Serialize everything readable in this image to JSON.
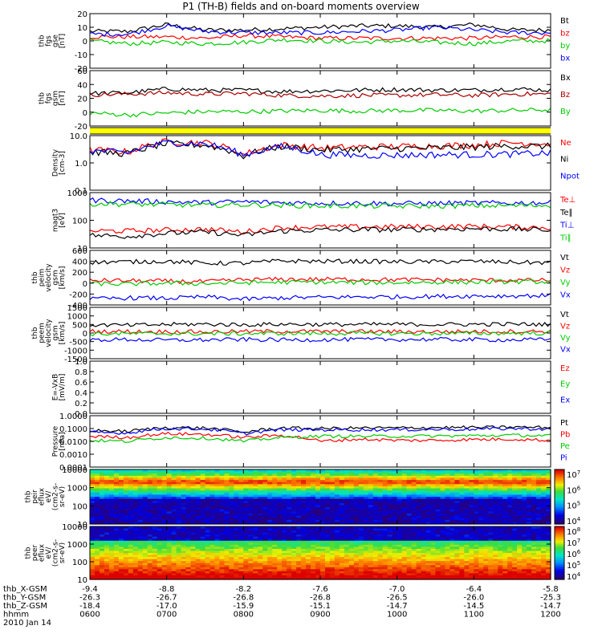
{
  "title": "P1 (TH-B) fields and on-board moments overview",
  "chart_data": [
    {
      "type": "line",
      "panel": "fgs_gse",
      "ylabel": [
        "thb",
        "fgs",
        "gse",
        "[nT]"
      ],
      "yticks": [
        "20",
        "10",
        "0",
        "-10",
        "-20"
      ],
      "ylim": [
        -20,
        20
      ],
      "series": [
        {
          "name": "Bt",
          "color": "#000000",
          "values": [
            7,
            7,
            12,
            8,
            8,
            9,
            10,
            11,
            11,
            10,
            12,
            8,
            8
          ]
        },
        {
          "name": "bz",
          "color": "#ff0000",
          "values": [
            3,
            3,
            3,
            2,
            4,
            3,
            2,
            2,
            2,
            2,
            2,
            3,
            3
          ]
        },
        {
          "name": "by",
          "color": "#00cc00",
          "values": [
            0,
            -2,
            -1,
            -2,
            -1,
            1,
            0,
            -1,
            0,
            -1,
            -2,
            0,
            0
          ]
        },
        {
          "name": "bx",
          "color": "#0000ff",
          "values": [
            5,
            5,
            11,
            7,
            6,
            6,
            6,
            7,
            8,
            10,
            8,
            6,
            6
          ]
        }
      ]
    },
    {
      "type": "line",
      "panel": "fgs_gsm",
      "ylabel": [
        "thb",
        "fgs",
        "gsm",
        "[nT]"
      ],
      "yticks": [
        "60",
        "40",
        "20",
        "0",
        "-20"
      ],
      "ylim": [
        -25,
        60
      ],
      "series": [
        {
          "name": "Bx",
          "color": "#000000",
          "values": [
            25,
            26,
            32,
            30,
            30,
            28,
            29,
            30,
            31,
            30,
            30,
            32,
            30
          ]
        },
        {
          "name": "Bz",
          "color": "#aa0000",
          "values": [
            23,
            24,
            26,
            24,
            25,
            22,
            21,
            22,
            22,
            23,
            22,
            24,
            24
          ]
        },
        {
          "name": "By",
          "color": "#00cc00",
          "values": [
            -5,
            -8,
            -5,
            -3,
            -3,
            -2,
            -1,
            -2,
            -1,
            -1,
            -2,
            -1,
            0
          ]
        }
      ]
    },
    {
      "type": "line",
      "panel": "density",
      "scale": "log",
      "ylabel": [
        "Density",
        "[cm-3]"
      ],
      "yticks": [
        "10.0",
        "1.0",
        "0.1"
      ],
      "ylim": [
        0.1,
        10
      ],
      "series": [
        {
          "name": "Ne",
          "color": "#ff0000",
          "values": [
            3,
            2.5,
            6,
            5.5,
            2,
            4.5,
            3.5,
            3.8,
            4,
            4.2,
            4.5,
            5.5,
            5
          ]
        },
        {
          "name": "Ni",
          "color": "#000000",
          "values": [
            2.5,
            2.2,
            5,
            4.5,
            1.8,
            4,
            3,
            3.2,
            3.4,
            3.5,
            3.8,
            4.2,
            4
          ]
        },
        {
          "name": "Npot",
          "color": "#0000ff",
          "values": [
            2.8,
            2.3,
            5.5,
            5,
            1.9,
            4,
            2,
            1.9,
            1.9,
            2,
            2,
            2.1,
            2.3
          ]
        }
      ]
    },
    {
      "type": "line",
      "panel": "temperature",
      "scale": "log",
      "ylabel": [
        "magt3",
        "[eV]"
      ],
      "yticks": [
        "1000",
        "100",
        "10"
      ],
      "ylim": [
        7,
        3000
      ],
      "series": [
        {
          "name": "Te⊥",
          "color": "#ff0000",
          "values": [
            45,
            45,
            50,
            55,
            40,
            65,
            70,
            70,
            72,
            72,
            75,
            70,
            65
          ]
        },
        {
          "name": "Te∥",
          "color": "#000000",
          "values": [
            28,
            25,
            35,
            40,
            28,
            45,
            50,
            52,
            52,
            55,
            58,
            55,
            50
          ]
        },
        {
          "name": "Ti⊥",
          "color": "#0000ff",
          "values": [
            1300,
            1200,
            1100,
            1000,
            1100,
            1000,
            950,
            950,
            900,
            920,
            950,
            950,
            1000
          ]
        },
        {
          "name": "Ti∥",
          "color": "#00cc00",
          "values": [
            900,
            850,
            800,
            750,
            800,
            750,
            700,
            700,
            680,
            700,
            720,
            720,
            750
          ]
        }
      ]
    },
    {
      "type": "line",
      "panel": "peim_velocity",
      "ylabel": [
        "thb",
        "peim",
        "velocity",
        "gsm",
        "[km/s]"
      ],
      "yticks": [
        "600",
        "400",
        "200",
        "0",
        "-200",
        "-400"
      ],
      "ylim": [
        -500,
        650
      ],
      "series": [
        {
          "name": "Vt",
          "color": "#000000",
          "values": [
            400,
            410,
            420,
            380,
            380,
            430,
            420,
            420,
            410,
            410,
            420,
            400,
            390
          ]
        },
        {
          "name": "Vz",
          "color": "#ff0000",
          "values": [
            20,
            10,
            0,
            -10,
            30,
            40,
            40,
            40,
            30,
            30,
            20,
            20,
            20
          ]
        },
        {
          "name": "Vy",
          "color": "#00cc00",
          "values": [
            -50,
            -60,
            -40,
            -50,
            -30,
            -20,
            -20,
            -30,
            -30,
            -20,
            -20,
            -10,
            -10
          ]
        },
        {
          "name": "Vx",
          "color": "#0000ff",
          "values": [
            -380,
            -350,
            -360,
            -330,
            -380,
            -350,
            -340,
            -330,
            -330,
            -320,
            -310,
            -310,
            -300
          ]
        }
      ]
    },
    {
      "type": "line",
      "panel": "peem_velocity",
      "ylabel": [
        "thb",
        "peem",
        "velocity",
        "gsm",
        "[km/s]"
      ],
      "yticks": [
        "1500",
        "1000",
        "500",
        "0",
        "-500",
        "-1000",
        "-1500"
      ],
      "ylim": [
        -1500,
        1500
      ],
      "series": [
        {
          "name": "Vt",
          "color": "#000000",
          "values": [
            480,
            450,
            500,
            520,
            480,
            520,
            500,
            500,
            510,
            500,
            510,
            520,
            500
          ]
        },
        {
          "name": "Vz",
          "color": "#ff0000",
          "values": [
            100,
            90,
            80,
            70,
            90,
            100,
            90,
            90,
            80,
            80,
            90,
            90,
            100
          ]
        },
        {
          "name": "Vy",
          "color": "#00cc00",
          "values": [
            -50,
            -40,
            -30,
            -40,
            -30,
            -20,
            -20,
            -20,
            -30,
            -20,
            -20,
            -10,
            -10
          ]
        },
        {
          "name": "Vx",
          "color": "#0000ff",
          "values": [
            -400,
            -380,
            -420,
            -400,
            -380,
            -400,
            -390,
            -380,
            -380,
            -370,
            -390,
            -400,
            -380
          ]
        }
      ]
    },
    {
      "type": "line",
      "panel": "efield",
      "ylabel": [
        "E=-VxB",
        "[mV/m]"
      ],
      "yticks": [
        "1.0",
        "0.8",
        "0.6",
        "0.4",
        "0.2",
        "0.0"
      ],
      "ylim": [
        0,
        1
      ],
      "series": [
        {
          "name": "Ez",
          "color": "#ff0000",
          "values": []
        },
        {
          "name": "Ey",
          "color": "#00cc00",
          "values": []
        },
        {
          "name": "Ex",
          "color": "#0000ff",
          "values": []
        }
      ]
    },
    {
      "type": "line",
      "panel": "pressure",
      "scale": "log",
      "ylabel": [
        "Pressure",
        "[nPa]"
      ],
      "yticks": [
        "1.0000",
        "0.1000",
        "0.0100",
        "0.0010",
        "0.0001"
      ],
      "ylim": [
        0.0001,
        1
      ],
      "series": [
        {
          "name": "Pt",
          "color": "#000000",
          "values": [
            0.07,
            0.06,
            0.12,
            0.11,
            0.05,
            0.11,
            0.1,
            0.11,
            0.11,
            0.12,
            0.12,
            0.13,
            0.12
          ]
        },
        {
          "name": "Pb",
          "color": "#ff0000",
          "values": [
            0.025,
            0.02,
            0.04,
            0.035,
            0.02,
            0.03,
            0.01,
            0.015,
            0.012,
            0.012,
            0.014,
            0.015,
            0.012
          ]
        },
        {
          "name": "Pe",
          "color": "#00cc00",
          "values": [
            0.012,
            0.01,
            0.02,
            0.018,
            0.01,
            0.02,
            0.025,
            0.025,
            0.025,
            0.026,
            0.028,
            0.03,
            0.028
          ]
        },
        {
          "name": "Pi",
          "color": "#0000ff",
          "values": [
            0.05,
            0.045,
            0.1,
            0.09,
            0.04,
            0.08,
            0.08,
            0.08,
            0.08,
            0.085,
            0.09,
            0.1,
            0.09
          ]
        }
      ]
    },
    {
      "type": "heatmap",
      "panel": "peir_eflux",
      "ylabel": [
        "thb",
        "peir",
        "eflux",
        "eV/",
        "(cm2-s-",
        "sr-eV)"
      ],
      "yticks": [
        "10000",
        "1000",
        "100",
        "10"
      ],
      "ylim": [
        8,
        20000
      ],
      "colorbar_ticks": [
        "10^7",
        "10^6",
        "10^5",
        "10^4"
      ]
    },
    {
      "type": "heatmap",
      "panel": "peer_eflux",
      "ylabel": [
        "thb",
        "peer",
        "eflux",
        "eV/",
        "(cm2-s-",
        "sr-eV)"
      ],
      "yticks": [
        "10000",
        "1000",
        "100",
        "10"
      ],
      "ylim": [
        8,
        20000
      ],
      "colorbar_ticks": [
        "10^8",
        "10^7",
        "10^6",
        "10^5",
        "10^4"
      ]
    }
  ],
  "xaxis": {
    "times": [
      "0600",
      "0700",
      "0800",
      "0900",
      "1000",
      "1100",
      "1200"
    ],
    "rows": [
      {
        "label": "thb_X-GSM",
        "values": [
          "-9.4",
          "-8.8",
          "-8.2",
          "-7.6",
          "-7.0",
          "-6.4",
          "-5.8"
        ]
      },
      {
        "label": "thb_Y-GSM",
        "values": [
          "-26.3",
          "-26.7",
          "-26.8",
          "-26.8",
          "-26.5",
          "-26.0",
          "-25.3"
        ]
      },
      {
        "label": "thb_Z-GSM",
        "values": [
          "-18.4",
          "-17.0",
          "-15.9",
          "-15.1",
          "-14.7",
          "-14.5",
          "-14.7"
        ]
      },
      {
        "label": "hhmm",
        "values": [
          "0600",
          "0700",
          "0800",
          "0900",
          "1000",
          "1100",
          "1200"
        ]
      }
    ],
    "date": "2010 Jan 14"
  }
}
